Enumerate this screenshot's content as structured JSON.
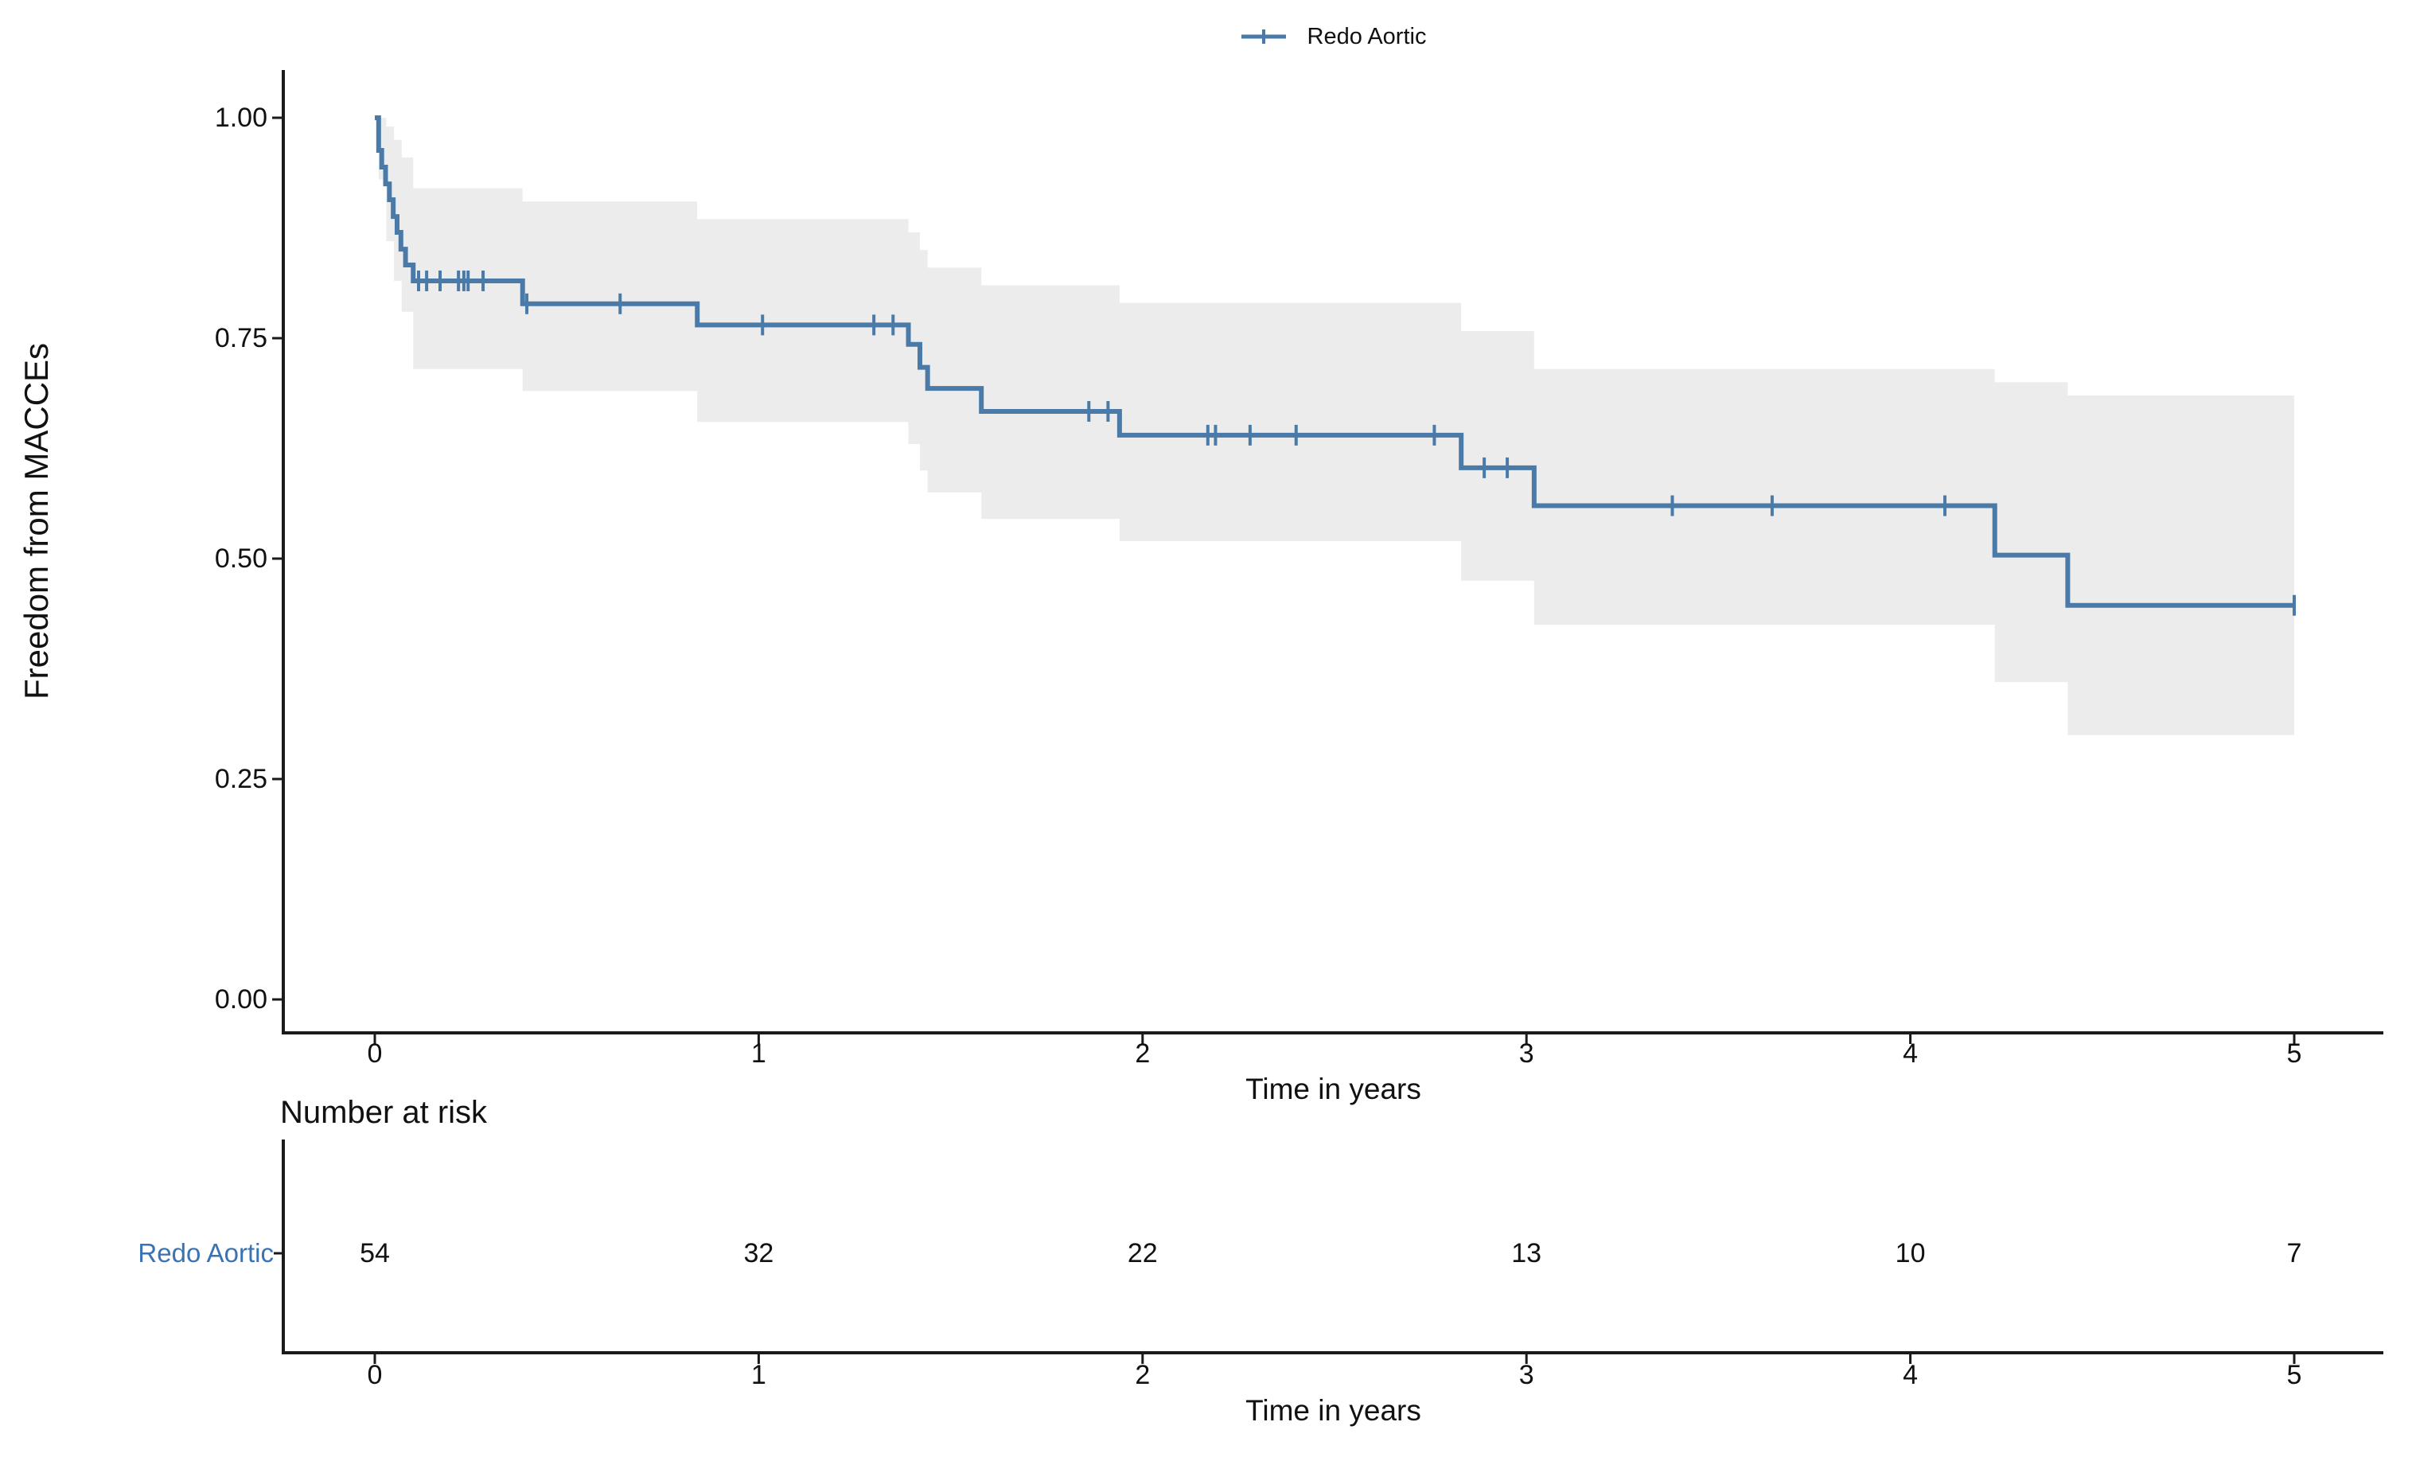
{
  "legend": {
    "label": "Redo Aortic"
  },
  "colors": {
    "curve": "#4a7aa8",
    "band": "#ececec",
    "axis": "#1a1a1a",
    "text": "#111111",
    "risk_label": "#3973b5",
    "background": "#ffffff"
  },
  "main_plot": {
    "y_axis_title": "Freedom from MACCEs",
    "x_axis_title": "Time in years",
    "y_ticks": [
      {
        "v": 1.0,
        "label": "1.00"
      },
      {
        "v": 0.75,
        "label": "0.75"
      },
      {
        "v": 0.5,
        "label": "0.50"
      },
      {
        "v": 0.25,
        "label": "0.25"
      },
      {
        "v": 0.0,
        "label": "0.00"
      }
    ],
    "x_ticks": [
      {
        "v": 0,
        "label": "0"
      },
      {
        "v": 1,
        "label": "1"
      },
      {
        "v": 2,
        "label": "2"
      },
      {
        "v": 3,
        "label": "3"
      },
      {
        "v": 4,
        "label": "4"
      },
      {
        "v": 5,
        "label": "5"
      }
    ]
  },
  "risk_table": {
    "title": "Number at risk",
    "row_label": "Redo Aortic",
    "x_axis_title": "Time in years",
    "times": [
      0,
      1,
      2,
      3,
      4,
      5
    ],
    "x_ticks": [
      "0",
      "1",
      "2",
      "3",
      "4",
      "5"
    ],
    "values": [
      "54",
      "32",
      "22",
      "13",
      "10",
      "7"
    ]
  },
  "chart_data": {
    "type": "line",
    "subtype": "kaplan-meier-step",
    "title": "",
    "xlabel": "Time in years",
    "ylabel": "Freedom from MACCEs",
    "xlim": [
      0,
      5
    ],
    "ylim": [
      0,
      1
    ],
    "grid": false,
    "legend_position": "top-center",
    "series": [
      {
        "name": "Redo Aortic",
        "n_at_start": 54,
        "steps": [
          [
            0.0,
            1.0
          ],
          [
            0.01,
            0.963
          ],
          [
            0.018,
            0.944
          ],
          [
            0.028,
            0.925
          ],
          [
            0.038,
            0.907
          ],
          [
            0.048,
            0.888
          ],
          [
            0.058,
            0.87
          ],
          [
            0.068,
            0.851
          ],
          [
            0.08,
            0.833
          ],
          [
            0.1,
            0.815
          ],
          [
            0.385,
            0.789
          ],
          [
            0.84,
            0.765
          ],
          [
            1.39,
            0.743
          ],
          [
            1.42,
            0.717
          ],
          [
            1.44,
            0.693
          ],
          [
            1.58,
            0.667
          ],
          [
            1.94,
            0.64
          ],
          [
            2.83,
            0.603
          ],
          [
            3.02,
            0.56
          ],
          [
            4.22,
            0.504
          ],
          [
            4.41,
            0.447
          ]
        ],
        "end_time": 5.0,
        "censors": [
          [
            0.114,
            0.815
          ],
          [
            0.135,
            0.815
          ],
          [
            0.17,
            0.815
          ],
          [
            0.218,
            0.815
          ],
          [
            0.232,
            0.815
          ],
          [
            0.243,
            0.815
          ],
          [
            0.282,
            0.815
          ],
          [
            0.396,
            0.789
          ],
          [
            0.639,
            0.789
          ],
          [
            1.01,
            0.765
          ],
          [
            1.3,
            0.765
          ],
          [
            1.35,
            0.765
          ],
          [
            1.86,
            0.667
          ],
          [
            1.91,
            0.667
          ],
          [
            2.17,
            0.64
          ],
          [
            2.19,
            0.64
          ],
          [
            2.28,
            0.64
          ],
          [
            2.4,
            0.64
          ],
          [
            2.76,
            0.64
          ],
          [
            2.89,
            0.603
          ],
          [
            2.95,
            0.603
          ],
          [
            3.38,
            0.56
          ],
          [
            3.64,
            0.56
          ],
          [
            4.09,
            0.56
          ],
          [
            5.0,
            0.447
          ]
        ],
        "ci_band": [
          [
            0.01,
            0.93,
            1.0
          ],
          [
            0.03,
            0.86,
            0.99
          ],
          [
            0.05,
            0.815,
            0.975
          ],
          [
            0.07,
            0.78,
            0.955
          ],
          [
            0.1,
            0.715,
            0.92
          ],
          [
            0.385,
            0.69,
            0.905
          ],
          [
            0.84,
            0.655,
            0.885
          ],
          [
            1.39,
            0.63,
            0.87
          ],
          [
            1.42,
            0.6,
            0.85
          ],
          [
            1.44,
            0.575,
            0.83
          ],
          [
            1.58,
            0.545,
            0.81
          ],
          [
            1.94,
            0.52,
            0.79
          ],
          [
            2.83,
            0.475,
            0.758
          ],
          [
            3.02,
            0.425,
            0.715
          ],
          [
            4.22,
            0.36,
            0.7
          ],
          [
            4.41,
            0.3,
            0.685
          ]
        ]
      }
    ],
    "number_at_risk": {
      "times": [
        0,
        1,
        2,
        3,
        4,
        5
      ],
      "Redo Aortic": [
        54,
        32,
        22,
        13,
        10,
        7
      ]
    }
  }
}
